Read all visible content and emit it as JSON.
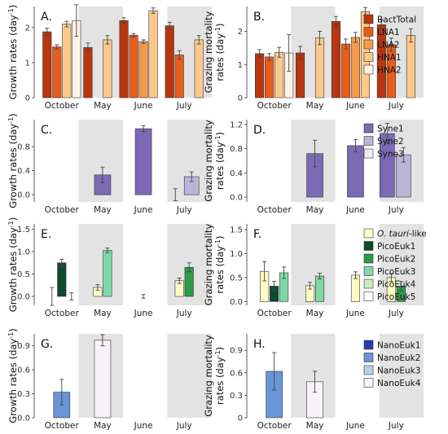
{
  "chart_data": [
    {
      "id": "A",
      "letter": "A.",
      "type": "bar",
      "row": 0,
      "col": 0,
      "ylabel_lines": [
        "Growth rates (day<sup>-1</sup>)"
      ],
      "ylim": [
        0,
        2.6
      ],
      "yticks": [
        0,
        1,
        2
      ],
      "categories": [
        "October",
        "May",
        "June",
        "July"
      ],
      "shaded": [
        1,
        3
      ],
      "series_names": [
        "BactTotal",
        "LNA1",
        "LNA2",
        "HNA1",
        "HNA2"
      ],
      "bars": [
        {
          "cat": 0,
          "slot": 0,
          "of": 4,
          "series": 0,
          "value": 1.88,
          "err": 0.1
        },
        {
          "cat": 0,
          "slot": 1,
          "of": 4,
          "series": 1,
          "value": 1.45,
          "err": 0.06
        },
        {
          "cat": 0,
          "slot": 2,
          "of": 4,
          "series": 3,
          "value": 2.1,
          "err": 0.08
        },
        {
          "cat": 0,
          "slot": 3,
          "of": 4,
          "series": 4,
          "value": 2.2,
          "err": 0.45
        },
        {
          "cat": 1,
          "slot": 0,
          "of": 4,
          "series": 0,
          "value": 1.43,
          "err": 0.13
        },
        {
          "cat": 1,
          "slot": 2,
          "of": 4,
          "series": 3,
          "value": 1.65,
          "err": 0.12
        },
        {
          "cat": 2,
          "slot": 0,
          "of": 5,
          "series": 0,
          "value": 2.2,
          "err": 0.08
        },
        {
          "cat": 2,
          "slot": 1,
          "of": 5,
          "series": 1,
          "value": 1.78,
          "err": 0.05
        },
        {
          "cat": 2,
          "slot": 2,
          "of": 5,
          "series": 2,
          "value": 1.6,
          "err": 0.05
        },
        {
          "cat": 2,
          "slot": 3,
          "of": 5,
          "series": 3,
          "value": 2.48,
          "err": 0.08
        },
        {
          "cat": 3,
          "slot": 0,
          "of": 4,
          "series": 0,
          "value": 2.05,
          "err": 0.1
        },
        {
          "cat": 3,
          "slot": 1,
          "of": 4,
          "series": 1,
          "value": 1.22,
          "err": 0.12
        },
        {
          "cat": 3,
          "slot": 3,
          "of": 4,
          "series": 3,
          "value": 1.65,
          "err": 0.12
        }
      ]
    },
    {
      "id": "B",
      "letter": "B.",
      "type": "bar",
      "row": 0,
      "col": 1,
      "ylabel_lines": [
        "Grazing mortality",
        "rates (day<sup>-1</sup>)"
      ],
      "ylim": [
        0,
        2.75
      ],
      "yticks": [
        0,
        1,
        2
      ],
      "categories": [
        "October",
        "May",
        "June",
        "July"
      ],
      "shaded": [
        1,
        3
      ],
      "bars": [
        {
          "cat": 0,
          "slot": 0,
          "of": 4,
          "series": 0,
          "value": 1.33,
          "err": 0.12
        },
        {
          "cat": 0,
          "slot": 1,
          "of": 4,
          "series": 1,
          "value": 1.23,
          "err": 0.1
        },
        {
          "cat": 0,
          "slot": 2,
          "of": 4,
          "series": 3,
          "value": 1.37,
          "err": 0.15
        },
        {
          "cat": 0,
          "slot": 3,
          "of": 4,
          "series": 4,
          "value": 1.35,
          "err": 0.55
        },
        {
          "cat": 1,
          "slot": 0,
          "of": 4,
          "series": 0,
          "value": 1.35,
          "err": 0.2
        },
        {
          "cat": 1,
          "slot": 2,
          "of": 4,
          "series": 3,
          "value": 1.8,
          "err": 0.2
        },
        {
          "cat": 2,
          "slot": 0,
          "of": 5,
          "series": 0,
          "value": 2.3,
          "err": 0.15
        },
        {
          "cat": 2,
          "slot": 1,
          "of": 5,
          "series": 1,
          "value": 1.62,
          "err": 0.15
        },
        {
          "cat": 2,
          "slot": 2,
          "of": 5,
          "series": 2,
          "value": 1.82,
          "err": 0.15
        },
        {
          "cat": 2,
          "slot": 3,
          "of": 5,
          "series": 3,
          "value": 2.6,
          "err": 0.12
        },
        {
          "cat": 3,
          "slot": 0,
          "of": 4,
          "series": 0,
          "value": 2.2,
          "err": 0.15
        },
        {
          "cat": 3,
          "slot": 1,
          "of": 4,
          "series": 1,
          "value": 1.6,
          "err": 0.2
        },
        {
          "cat": 3,
          "slot": 3,
          "of": 4,
          "series": 3,
          "value": 1.88,
          "err": 0.2
        }
      ]
    },
    {
      "id": "C",
      "letter": "C.",
      "type": "bar",
      "row": 1,
      "col": 0,
      "ylabel_lines": [
        "Growth rates (day<sup>-1</sup>)"
      ],
      "ylim": [
        -0.12,
        1.25
      ],
      "yticks": [
        0,
        0.4,
        0.8
      ],
      "tick_labels": [
        "0.0",
        "0.4",
        "0.8"
      ],
      "categories": [
        "October",
        "May",
        "June",
        "July"
      ],
      "shaded": [
        1,
        3
      ],
      "series_names": [
        "Syne1",
        "Syne2",
        "Syne3"
      ],
      "bars": [
        {
          "cat": 1,
          "slot": 0,
          "of": 2,
          "series": 0,
          "value": 0.33,
          "err": 0.13,
          "center": true
        },
        {
          "cat": 2,
          "slot": 0,
          "of": 2,
          "series": 0,
          "value": 1.1,
          "err": 0.05,
          "center": true
        },
        {
          "cat": 3,
          "slot": 0,
          "of": 2,
          "series": 0,
          "value": 0.0,
          "err": 0.1
        },
        {
          "cat": 3,
          "slot": 1,
          "of": 2,
          "series": 1,
          "value": 0.3,
          "err": 0.08
        }
      ]
    },
    {
      "id": "D",
      "letter": "D.",
      "type": "bar",
      "row": 1,
      "col": 1,
      "ylabel_lines": [
        "Grazing mortality",
        "rates (day<sup>-1</sup>)"
      ],
      "ylim": [
        -0.08,
        1.28
      ],
      "yticks": [
        0,
        0.4,
        0.8,
        1.2
      ],
      "tick_labels": [
        "0.0",
        "0.4",
        "0.8",
        "1.2"
      ],
      "categories": [
        "October",
        "May",
        "June",
        "July"
      ],
      "shaded": [
        1,
        3
      ],
      "bars": [
        {
          "cat": 1,
          "slot": 0,
          "of": 2,
          "series": 0,
          "value": 0.72,
          "err": 0.22,
          "center": true
        },
        {
          "cat": 2,
          "slot": 0,
          "of": 2,
          "series": 0,
          "value": 0.85,
          "err": 0.1,
          "center": true
        },
        {
          "cat": 3,
          "slot": 0,
          "of": 2,
          "series": 0,
          "value": 1.05,
          "err": 0.17
        },
        {
          "cat": 3,
          "slot": 1,
          "of": 2,
          "series": 1,
          "value": 0.7,
          "err": 0.12
        }
      ]
    },
    {
      "id": "E",
      "letter": "E.",
      "type": "bar",
      "row": 2,
      "col": 0,
      "ylabel_lines": [
        "Growth rates (day<sup>-1</sup>)"
      ],
      "ylim": [
        -0.2,
        1.62
      ],
      "yticks": [
        0,
        0.5,
        1,
        1.5
      ],
      "tick_labels": [
        "0.0",
        "0.5",
        "1.0",
        "1.5"
      ],
      "categories": [
        "October",
        "May",
        "June",
        "July"
      ],
      "shaded": [
        1,
        3
      ],
      "series_names": [
        "O. tauri-like",
        "PicoEuk1",
        "PicoEuk2",
        "PicoEuk3",
        "PicoEuk4",
        "PicoEuk5"
      ],
      "bars": [
        {
          "cat": 0,
          "slot": 0,
          "of": 3,
          "series": 0,
          "value": 0.0,
          "err": 0.2
        },
        {
          "cat": 0,
          "slot": 1,
          "of": 3,
          "series": 1,
          "value": 0.75,
          "err": 0.08
        },
        {
          "cat": 0,
          "slot": 2,
          "of": 3,
          "series": 5,
          "value": 0.0,
          "err": 0.08
        },
        {
          "cat": 1,
          "slot": 0,
          "of": 2,
          "series": 0,
          "value": 0.2,
          "err": 0.06
        },
        {
          "cat": 1,
          "slot": 1,
          "of": 2,
          "series": 3,
          "value": 1.03,
          "err": 0.05
        },
        {
          "cat": 2,
          "slot": 0,
          "of": 1,
          "series": 0,
          "value": 0.0,
          "err": 0.04,
          "center": true
        },
        {
          "cat": 3,
          "slot": 0,
          "of": 2,
          "series": 0,
          "value": 0.35,
          "err": 0.06
        },
        {
          "cat": 3,
          "slot": 1,
          "of": 2,
          "series": 2,
          "value": 0.65,
          "err": 0.1
        }
      ]
    },
    {
      "id": "F",
      "letter": "F.",
      "type": "bar",
      "row": 2,
      "col": 1,
      "ylabel_lines": [
        "Grazing mortality",
        "rates (day<sup>-1</sup>)"
      ],
      "ylim": [
        -0.08,
        1.62
      ],
      "yticks": [
        0,
        0.5,
        1,
        1.5
      ],
      "tick_labels": [
        "0.0",
        "0.5",
        "1.0",
        "1.5"
      ],
      "categories": [
        "October",
        "May",
        "June",
        "July"
      ],
      "shaded": [
        1,
        3
      ],
      "bars": [
        {
          "cat": 0,
          "slot": 0,
          "of": 3,
          "series": 0,
          "value": 0.63,
          "err": 0.2
        },
        {
          "cat": 0,
          "slot": 1,
          "of": 3,
          "series": 1,
          "value": 0.32,
          "err": 0.1
        },
        {
          "cat": 0,
          "slot": 2,
          "of": 3,
          "series": 3,
          "value": 0.6,
          "err": 0.12
        },
        {
          "cat": 1,
          "slot": 0,
          "of": 2,
          "series": 0,
          "value": 0.33,
          "err": 0.07
        },
        {
          "cat": 1,
          "slot": 1,
          "of": 2,
          "series": 3,
          "value": 0.53,
          "err": 0.06
        },
        {
          "cat": 2,
          "slot": 0,
          "of": 1,
          "series": 0,
          "value": 0.55,
          "err": 0.07,
          "center": true
        },
        {
          "cat": 3,
          "slot": 0,
          "of": 2,
          "series": 0,
          "value": 0.5,
          "err": 0.08
        },
        {
          "cat": 3,
          "slot": 1,
          "of": 2,
          "series": 2,
          "value": 0.32,
          "err": 0.1
        }
      ]
    },
    {
      "id": "G",
      "letter": "G.",
      "type": "bar",
      "row": 3,
      "col": 0,
      "ylabel_lines": [
        "Growth rates (day<sup>-1</sup>)"
      ],
      "ylim": [
        0,
        1.05
      ],
      "yticks": [
        0,
        0.3,
        0.6,
        0.9
      ],
      "tick_labels": [
        "0.0",
        "0.3",
        "0.6",
        "0.9"
      ],
      "categories": [
        "October",
        "May",
        "June",
        "July"
      ],
      "shaded": [
        1,
        3
      ],
      "series_names": [
        "NanoEuk1",
        "NanoEuk2",
        "NanoEuk3",
        "NanoEuk4"
      ],
      "bars": [
        {
          "cat": 0,
          "slot": 0,
          "of": 1,
          "series": 1,
          "value": 0.32,
          "err": 0.16,
          "center": true
        },
        {
          "cat": 1,
          "slot": 0,
          "of": 1,
          "series": 3,
          "value": 0.97,
          "err": 0.07,
          "center": true
        }
      ]
    },
    {
      "id": "H",
      "letter": "H.",
      "type": "bar",
      "row": 3,
      "col": 1,
      "ylabel_lines": [
        "Grazing mortality",
        "rates (day<sup>-1</sup>)"
      ],
      "ylim": [
        0,
        1.12
      ],
      "yticks": [
        0,
        0.3,
        0.6,
        0.9
      ],
      "tick_labels": [
        "0",
        "0.3",
        "0.6",
        "0.9"
      ],
      "categories": [
        "October",
        "May",
        "June",
        "July"
      ],
      "shaded": [
        1,
        3
      ],
      "bars": [
        {
          "cat": 0,
          "slot": 0,
          "of": 1,
          "series": 1,
          "value": 0.62,
          "err": 0.25,
          "center": true
        },
        {
          "cat": 1,
          "slot": 0,
          "of": 1,
          "series": 3,
          "value": 0.48,
          "err": 0.14,
          "center": true
        }
      ]
    }
  ],
  "legends": [
    {
      "row": 0,
      "items": [
        {
          "label": "BactTotal",
          "color": "#b8360f"
        },
        {
          "label": "LNA1",
          "color": "#e85c1c"
        },
        {
          "label": "LNA2",
          "color": "#f39a4d"
        },
        {
          "label": "HNA1",
          "color": "#fcc98b"
        },
        {
          "label": "HNA2",
          "color": "#fff3e6"
        }
      ]
    },
    {
      "row": 1,
      "items": [
        {
          "label": "Syne1",
          "color": "#7b6bb5"
        },
        {
          "label": "Syne2",
          "color": "#b9b4d9"
        },
        {
          "label": "Syne3",
          "color": "#eeedf6"
        }
      ]
    },
    {
      "row": 2,
      "items": [
        {
          "label": "O. tauri",
          "suffix": "-like",
          "italic": true,
          "color": "#fcfcc4"
        },
        {
          "label": "PicoEuk1",
          "color": "#0d4a2e"
        },
        {
          "label": "PicoEuk2",
          "color": "#2f9a4a"
        },
        {
          "label": "PicoEuk3",
          "color": "#7fd8a8"
        },
        {
          "label": "PicoEuk4",
          "color": "#c9ebc6"
        },
        {
          "label": "PicoEuk5",
          "color": "#ffffff"
        }
      ]
    },
    {
      "row": 3,
      "items": [
        {
          "label": "NanoEuk1",
          "color": "#2a3ab8"
        },
        {
          "label": "NanoEuk2",
          "color": "#6a95d6"
        },
        {
          "label": "NanoEuk3",
          "color": "#b3d2ec"
        },
        {
          "label": "NanoEuk4",
          "color": "#f8f3fa"
        }
      ]
    }
  ],
  "colors": {
    "row0": [
      "#b8360f",
      "#e85c1c",
      "#f39a4d",
      "#fcc98b",
      "#fff3e6"
    ],
    "row1": [
      "#7b6bb5",
      "#b9b4d9",
      "#eeedf6"
    ],
    "row2": [
      "#fcfcc4",
      "#0d4a2e",
      "#2f9a4a",
      "#7fd8a8",
      "#c9ebc6",
      "#ffffff"
    ],
    "row3": [
      "#2a3ab8",
      "#6a95d6",
      "#b3d2ec",
      "#f8f3fa"
    ],
    "shade": "#e3e3e3"
  }
}
